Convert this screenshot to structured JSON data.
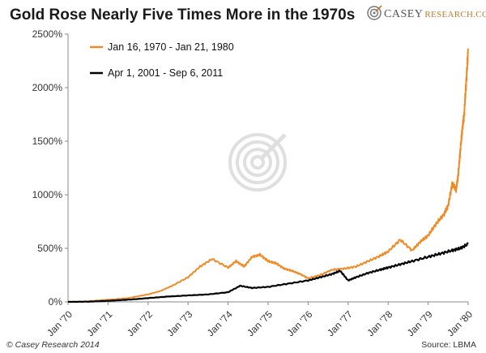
{
  "header": {
    "title": "Gold Rose Nearly Five Times More in the 1970s",
    "logo_prefix": "Casey",
    "logo_suffix": "Research.com",
    "logo_icon": "target-icon"
  },
  "footer": {
    "copyright": "© Casey Research 2014",
    "source": "Source: LBMA"
  },
  "colors": {
    "series_1970s": "#f08a24",
    "series_2000s": "#000000",
    "axis": "#888888",
    "watermark": "#d8d8d8",
    "logo_accent": "#c47a2c"
  },
  "chart_data": {
    "type": "line",
    "title": "Gold Rose Nearly Five Times More in the 1970s",
    "xlabel": "",
    "ylabel": "",
    "x_ticks": [
      "Jan '70",
      "Jan '71",
      "Jan '72",
      "Jan '73",
      "Jan '74",
      "Jan '75",
      "Jan '76",
      "Jan '77",
      "Jan '78",
      "Jan '79",
      "Jan '80"
    ],
    "y_ticks": [
      "0%",
      "500%",
      "1000%",
      "1500%",
      "2000%",
      "2500%"
    ],
    "ylim": [
      0,
      2500
    ],
    "xlim": [
      0,
      10
    ],
    "grid": false,
    "legend_position": "top-left",
    "series": [
      {
        "name": "Jan 16, 1970 - Jan 21, 1980",
        "color": "#f08a24",
        "x": [
          0,
          0.5,
          1.0,
          1.5,
          2.0,
          2.3,
          2.6,
          3.0,
          3.3,
          3.6,
          4.0,
          4.2,
          4.4,
          4.6,
          4.8,
          5.0,
          5.2,
          5.4,
          5.6,
          5.8,
          6.0,
          6.3,
          6.6,
          6.9,
          7.2,
          7.5,
          7.8,
          8.0,
          8.3,
          8.6,
          8.8,
          9.0,
          9.2,
          9.4,
          9.5,
          9.6,
          9.7,
          9.75,
          9.8,
          9.85,
          9.9,
          9.95,
          10.0
        ],
        "values": [
          0,
          5,
          20,
          35,
          70,
          100,
          150,
          230,
          330,
          400,
          320,
          380,
          330,
          420,
          440,
          380,
          360,
          310,
          290,
          260,
          220,
          250,
          300,
          310,
          330,
          380,
          430,
          470,
          580,
          480,
          560,
          620,
          730,
          820,
          900,
          1100,
          1050,
          1180,
          1400,
          1600,
          1750,
          2050,
          2350
        ]
      },
      {
        "name": "Apr 1, 2001 - Sep 6, 2011",
        "color": "#000000",
        "x": [
          0,
          0.5,
          1.0,
          1.5,
          2.0,
          2.5,
          3.0,
          3.5,
          4.0,
          4.3,
          4.6,
          5.0,
          5.5,
          6.0,
          6.3,
          6.6,
          6.8,
          7.0,
          7.2,
          7.5,
          7.8,
          8.0,
          8.3,
          8.6,
          9.0,
          9.3,
          9.6,
          9.8,
          10.0
        ],
        "values": [
          0,
          2,
          10,
          20,
          35,
          50,
          60,
          70,
          90,
          150,
          130,
          140,
          170,
          200,
          230,
          260,
          290,
          200,
          230,
          270,
          300,
          320,
          350,
          380,
          420,
          450,
          480,
          500,
          540
        ]
      }
    ]
  }
}
